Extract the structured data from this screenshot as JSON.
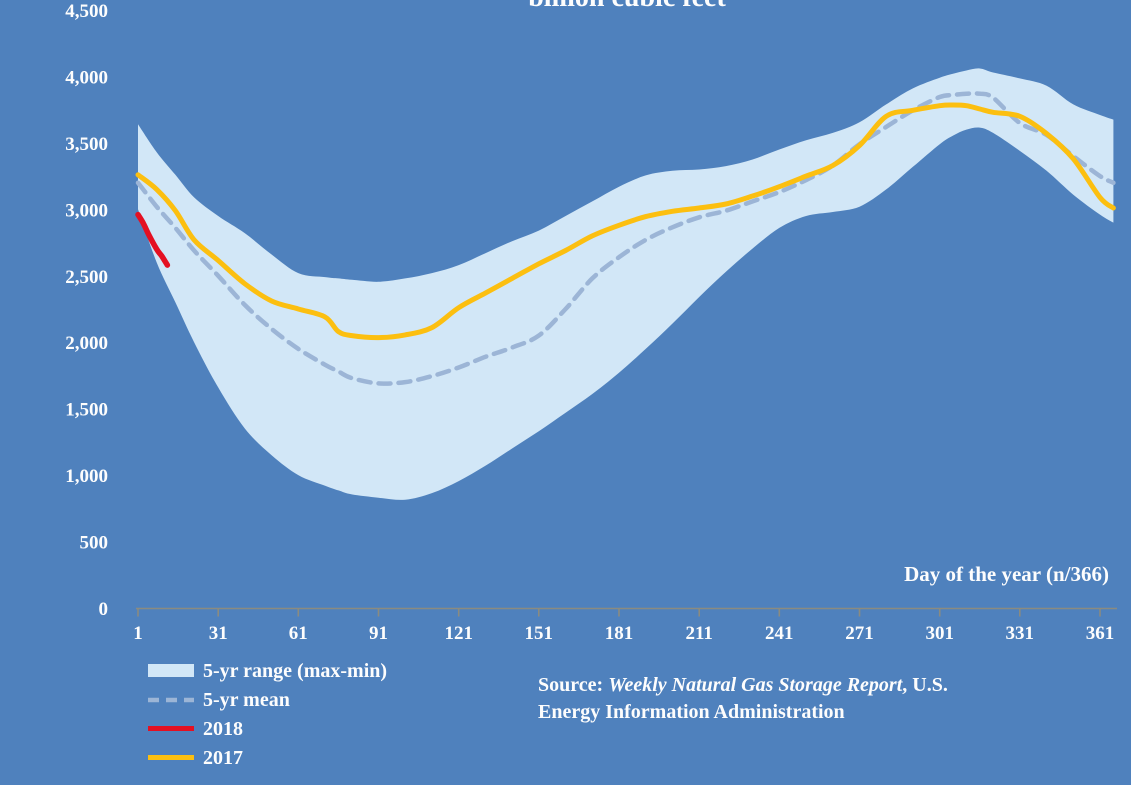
{
  "title_partial": "billion cubic feet",
  "x_axis_label": "Day of the year (n/366)",
  "legend": {
    "range_label": "5-yr range (max-min)",
    "mean_label": "5-yr mean",
    "y2018_label": "2018",
    "y2017_label": "2017"
  },
  "source": {
    "prefix": "Source: ",
    "italic_title": "Weekly Natural Gas Storage Report",
    "suffix": ", U.S.",
    "line2": "Energy Information Administration"
  },
  "colors": {
    "background": "#4f81bd",
    "band": "#d2e7f7",
    "mean": "#9cb5d6",
    "line_2017": "#fcbf10",
    "line_2018": "#e41022",
    "axis": "#8b8b80",
    "text": "#fdfdfd"
  },
  "chart_data": {
    "type": "line",
    "title": "billion cubic feet",
    "xlabel": "Day of the year (n/366)",
    "ylabel": "",
    "xlim": [
      1,
      366
    ],
    "ylim": [
      0,
      4500
    ],
    "grid": false,
    "legend_position": "bottom-left",
    "x_ticks": [
      1,
      31,
      61,
      91,
      121,
      151,
      181,
      211,
      241,
      271,
      301,
      331,
      361
    ],
    "y_tick_values": [
      0,
      500,
      1000,
      1500,
      2000,
      2500,
      3000,
      3500,
      4000,
      4500
    ],
    "y_tick_labels": [
      "0",
      "500",
      "1,000",
      "1,500",
      "2,000",
      "2,500",
      "3,000",
      "3,500",
      "4,000",
      "4,500"
    ],
    "x": [
      1,
      8,
      15,
      22,
      31,
      41,
      51,
      61,
      71,
      76,
      81,
      91,
      101,
      111,
      121,
      131,
      141,
      151,
      161,
      171,
      181,
      191,
      201,
      211,
      221,
      231,
      241,
      251,
      261,
      271,
      281,
      291,
      301,
      306,
      311,
      316,
      321,
      331,
      341,
      351,
      361,
      366
    ],
    "series": [
      {
        "name": "5-yr range max",
        "role": "band-top",
        "values": [
          3640,
          3430,
          3260,
          3090,
          2950,
          2820,
          2660,
          2520,
          2490,
          2480,
          2470,
          2455,
          2480,
          2520,
          2580,
          2670,
          2760,
          2840,
          2950,
          3060,
          3170,
          3255,
          3290,
          3300,
          3325,
          3375,
          3450,
          3520,
          3575,
          3655,
          3790,
          3910,
          3990,
          4020,
          4045,
          4060,
          4030,
          3985,
          3930,
          3790,
          3710,
          3675
        ]
      },
      {
        "name": "5-yr range min",
        "role": "band-bottom",
        "values": [
          3000,
          2600,
          2300,
          2000,
          1660,
          1350,
          1150,
          1000,
          920,
          885,
          855,
          830,
          815,
          865,
          955,
          1070,
          1200,
          1330,
          1470,
          1610,
          1770,
          1950,
          2140,
          2340,
          2530,
          2705,
          2860,
          2950,
          2980,
          3020,
          3150,
          3320,
          3490,
          3555,
          3600,
          3615,
          3575,
          3440,
          3290,
          3110,
          2960,
          2900
        ]
      },
      {
        "name": "5-yr mean",
        "role": "dashed-line",
        "values": [
          3200,
          3020,
          2860,
          2690,
          2500,
          2280,
          2100,
          1950,
          1830,
          1780,
          1730,
          1690,
          1700,
          1745,
          1810,
          1890,
          1960,
          2050,
          2250,
          2480,
          2640,
          2770,
          2865,
          2940,
          2990,
          3060,
          3130,
          3220,
          3330,
          3490,
          3620,
          3745,
          3845,
          3860,
          3870,
          3870,
          3840,
          3650,
          3560,
          3400,
          3250,
          3200
        ]
      },
      {
        "name": "2017",
        "role": "solid-line",
        "values": [
          3260,
          3150,
          2990,
          2770,
          2615,
          2440,
          2310,
          2250,
          2190,
          2080,
          2050,
          2035,
          2055,
          2110,
          2260,
          2370,
          2480,
          2590,
          2690,
          2800,
          2880,
          2945,
          2985,
          3010,
          3040,
          3100,
          3170,
          3250,
          3330,
          3480,
          3700,
          3745,
          3780,
          3785,
          3780,
          3755,
          3730,
          3700,
          3570,
          3380,
          3090,
          3010
        ]
      },
      {
        "name": "2018",
        "role": "solid-line",
        "x": [
          1,
          3,
          5,
          8,
          10,
          12
        ],
        "values": [
          2960,
          2895,
          2810,
          2700,
          2645,
          2580
        ]
      }
    ]
  }
}
